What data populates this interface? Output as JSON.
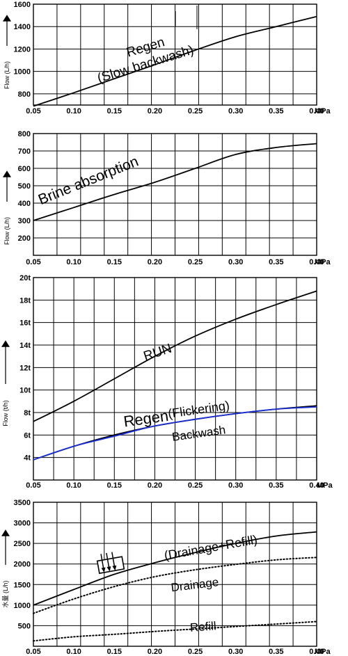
{
  "chart_data": [
    {
      "type": "line",
      "ylabel": "Flow (L/h)",
      "x_unit": "MPa",
      "xlim": [
        0.05,
        0.4
      ],
      "ylim": [
        700,
        1600
      ],
      "x_ticks": [
        "0.05",
        "0.10",
        "0.15",
        "0.20",
        "0.25",
        "0.30",
        "0.35",
        "0.40"
      ],
      "y_ticks": [
        "800",
        "1000",
        "1200",
        "1400",
        "1600"
      ],
      "grid": true,
      "series": [
        {
          "name": "Regen (Slow backwash)",
          "color": "#000000",
          "style": "solid",
          "x": [
            0.05,
            0.1,
            0.15,
            0.2,
            0.25,
            0.3,
            0.35,
            0.4
          ],
          "y": [
            690,
            810,
            935,
            1060,
            1190,
            1310,
            1400,
            1490
          ]
        }
      ],
      "annotations": [
        {
          "text": "Regen",
          "x": 0.19,
          "y": 1180,
          "size": 19,
          "rotate": -17
        },
        {
          "text": "(Slow backwash)",
          "x": 0.19,
          "y": 1030,
          "size": 19,
          "rotate": -17
        }
      ]
    },
    {
      "type": "line",
      "ylabel": "Flow (L/h)",
      "x_unit": "MPa",
      "xlim": [
        0.05,
        0.4
      ],
      "ylim": [
        100,
        800
      ],
      "x_ticks": [
        "0.05",
        "0.10",
        "0.15",
        "0.20",
        "0.25",
        "0.30",
        "0.35",
        "0.40"
      ],
      "y_ticks": [
        "200",
        "300",
        "400",
        "500",
        "600",
        "700",
        "800"
      ],
      "grid": true,
      "series": [
        {
          "name": "Brine absorption",
          "color": "#000000",
          "style": "solid",
          "x": [
            0.05,
            0.1,
            0.15,
            0.2,
            0.25,
            0.3,
            0.35,
            0.4
          ],
          "y": [
            300,
            375,
            450,
            520,
            600,
            680,
            720,
            742
          ]
        }
      ],
      "annotations": [
        {
          "text": "Brine absorption",
          "x": 0.12,
          "y": 505,
          "size": 21,
          "rotate": -22
        }
      ]
    },
    {
      "type": "line",
      "ylabel": "Flow (t/h)",
      "x_unit": "MPa",
      "xlim": [
        0.05,
        0.4
      ],
      "ylim": [
        2,
        20
      ],
      "x_ticks": [
        "0.05",
        "0.10",
        "0.15",
        "0.20",
        "0.25",
        "0.30",
        "0.35",
        "0.40"
      ],
      "y_ticks": [
        "4t",
        "6t",
        "8t",
        "10t",
        "12t",
        "14t",
        "16t",
        "18t",
        "20t"
      ],
      "grid": true,
      "series": [
        {
          "name": "RUN",
          "color": "#000000",
          "style": "solid",
          "x": [
            0.05,
            0.1,
            0.15,
            0.2,
            0.25,
            0.3,
            0.35,
            0.4
          ],
          "y": [
            7.2,
            9.0,
            11.0,
            13.0,
            14.8,
            16.3,
            17.6,
            18.8
          ]
        },
        {
          "name": "Regen (Flickering)",
          "color": "#000000",
          "style": "solid",
          "x": [
            0.05,
            0.1,
            0.15,
            0.2,
            0.25,
            0.3,
            0.35,
            0.4
          ],
          "y": [
            3.8,
            5.0,
            6.0,
            6.8,
            7.4,
            7.9,
            8.3,
            8.6
          ]
        },
        {
          "name": "Backwash",
          "color": "#1a2fd6",
          "style": "solid",
          "x": [
            0.05,
            0.1,
            0.15,
            0.2,
            0.25,
            0.3,
            0.35,
            0.4
          ],
          "y": [
            3.8,
            5.0,
            5.9,
            6.8,
            7.4,
            7.9,
            8.3,
            8.5
          ]
        }
      ],
      "annotations": [
        {
          "text": "RUN",
          "x": 0.205,
          "y": 13.0,
          "size": 19,
          "rotate": -18
        },
        {
          "text": "Regen",
          "x": 0.19,
          "y": 7.0,
          "size": 22,
          "rotate": -8
        },
        {
          "text": "(Flickering)",
          "x": 0.255,
          "y": 7.9,
          "size": 18,
          "rotate": -8
        },
        {
          "text": "Backwash",
          "x": 0.255,
          "y": 5.8,
          "size": 17,
          "rotate": -8,
          "color": "#e00000"
        }
      ]
    },
    {
      "type": "line",
      "ylabel": "水量 (L/h)",
      "x_unit": "MPa",
      "xlim": [
        0.05,
        0.4
      ],
      "ylim": [
        0,
        3500
      ],
      "x_ticks": [
        "0.05",
        "0.10",
        "0.15",
        "0.20",
        "0.25",
        "0.30",
        "0.35",
        "0.40"
      ],
      "y_ticks": [
        "500",
        "1000",
        "1500",
        "2000",
        "2500",
        "3000",
        "3500"
      ],
      "grid": true,
      "series": [
        {
          "name": "(Drainage+Refill)",
          "color": "#000000",
          "style": "solid",
          "x": [
            0.05,
            0.1,
            0.15,
            0.2,
            0.25,
            0.3,
            0.35,
            0.4
          ],
          "y": [
            1000,
            1380,
            1750,
            2030,
            2280,
            2500,
            2680,
            2780
          ]
        },
        {
          "name": "Drainage",
          "color": "#000000",
          "style": "dotted",
          "x": [
            0.05,
            0.1,
            0.15,
            0.2,
            0.25,
            0.3,
            0.35,
            0.4
          ],
          "y": [
            800,
            1150,
            1450,
            1690,
            1860,
            1990,
            2100,
            2160
          ]
        },
        {
          "name": "Refill",
          "color": "#000000",
          "style": "dotted",
          "x": [
            0.05,
            0.1,
            0.15,
            0.2,
            0.25,
            0.3,
            0.35,
            0.4
          ],
          "y": [
            130,
            230,
            290,
            360,
            420,
            480,
            540,
            600
          ]
        }
      ],
      "annotations": [
        {
          "text": "(Drainage+Refill)",
          "x": 0.27,
          "y": 2300,
          "size": 18,
          "rotate": -10
        },
        {
          "text": "Drainage",
          "x": 0.25,
          "y": 1400,
          "size": 17,
          "rotate": -7
        },
        {
          "text": "Refill",
          "x": 0.26,
          "y": 380,
          "size": 17,
          "rotate": -4
        }
      ]
    }
  ]
}
